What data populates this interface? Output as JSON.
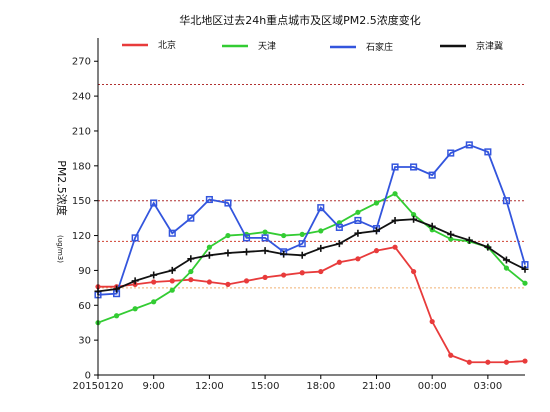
{
  "chart_data": {
    "type": "line",
    "title": "华北地区过去24h重点城市及区域PM2.5浓度变化",
    "ylabel": "PM2.5浓度",
    "ylabel_unit": "(ug/m3)",
    "xlabel": "",
    "ylim": [
      0,
      290
    ],
    "yticks": [
      0,
      30,
      60,
      90,
      120,
      150,
      180,
      210,
      240,
      270
    ],
    "xticks": [
      {
        "x": 0,
        "label": "20150120"
      },
      {
        "x": 3,
        "label": "9:00"
      },
      {
        "x": 6,
        "label": "12:00"
      },
      {
        "x": 9,
        "label": "15:00"
      },
      {
        "x": 12,
        "label": "18:00"
      },
      {
        "x": 15,
        "label": "21:00"
      },
      {
        "x": 18,
        "label": "00:00"
      },
      {
        "x": 21,
        "label": "03:00"
      }
    ],
    "xlim": [
      0,
      23
    ],
    "reference_lines": [
      {
        "value": 250,
        "color": "#b03030",
        "style": "dotted"
      },
      {
        "value": 150,
        "color": "#b03030",
        "style": "dotted"
      },
      {
        "value": 115,
        "color": "#d04030",
        "style": "dotted"
      },
      {
        "value": 75,
        "color": "#f0b070",
        "style": "dotted"
      }
    ],
    "legend_placement": "top",
    "series": [
      {
        "name": "北京",
        "color": "#e83b3b",
        "marker": "circle",
        "values": [
          76,
          76,
          78,
          80,
          81,
          82,
          80,
          78,
          81,
          84,
          86,
          88,
          89,
          97,
          100,
          107,
          110,
          89,
          46,
          17,
          11,
          11,
          11,
          12
        ]
      },
      {
        "name": "天津",
        "color": "#33cc33",
        "marker": "circle",
        "values": [
          45,
          51,
          57,
          63,
          73,
          89,
          110,
          120,
          121,
          123,
          120,
          121,
          124,
          131,
          140,
          148,
          156,
          138,
          125,
          117,
          115,
          110,
          92,
          79
        ]
      },
      {
        "name": "石家庄",
        "color": "#3355dd",
        "marker": "square",
        "values": [
          69,
          70,
          118,
          148,
          122,
          135,
          151,
          148,
          118,
          118,
          106,
          113,
          144,
          127,
          133,
          126,
          179,
          179,
          172,
          191,
          198,
          192,
          150,
          95
        ]
      },
      {
        "name": "京津冀",
        "color": "#111111",
        "marker": "plus",
        "values": [
          72,
          74,
          81,
          86,
          90,
          100,
          103,
          105,
          106,
          107,
          104,
          103,
          109,
          113,
          122,
          124,
          133,
          134,
          128,
          121,
          116,
          110,
          99,
          91
        ]
      }
    ]
  }
}
